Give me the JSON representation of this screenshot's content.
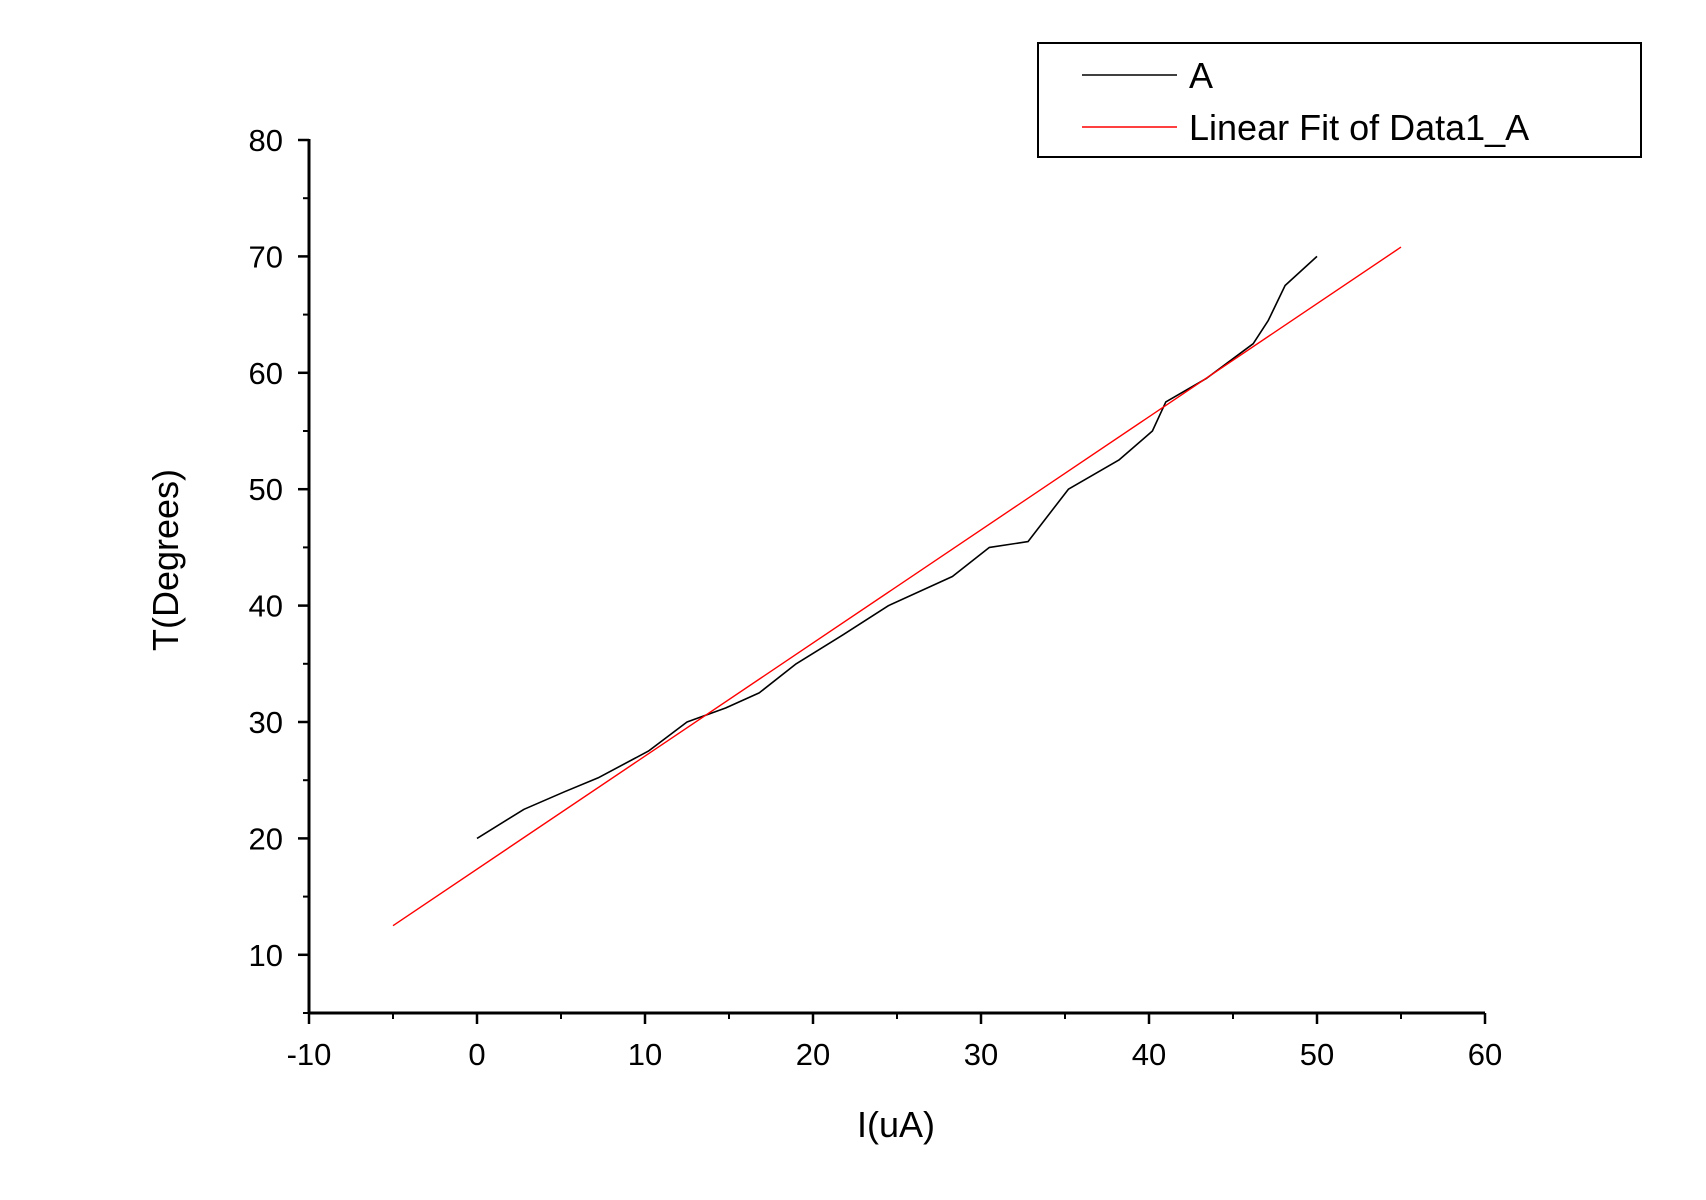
{
  "chart_data": {
    "type": "line",
    "title": "",
    "xlabel": "I(uA)",
    "ylabel": "T(Degrees)",
    "xlim": [
      -10,
      60
    ],
    "ylim": [
      5,
      80
    ],
    "x_major_ticks": [
      -10,
      0,
      10,
      20,
      30,
      40,
      50,
      60
    ],
    "x_tick_labels": [
      "-10",
      "0",
      "10",
      "20",
      "30",
      "40",
      "50",
      "60"
    ],
    "y_major_ticks": [
      10,
      20,
      30,
      40,
      50,
      60,
      70,
      80
    ],
    "y_tick_labels": [
      "10",
      "20",
      "30",
      "40",
      "50",
      "60",
      "70",
      "80"
    ],
    "grid": false,
    "legend_position": "top-right",
    "series": [
      {
        "name": "A",
        "color": "#000000",
        "x": [
          0,
          2.8,
          5.2,
          7.2,
          10.2,
          12.5,
          14.8,
          16.8,
          19,
          21.8,
          24.5,
          28.3,
          30.5,
          32.8,
          35.2,
          38.2,
          40.2,
          41,
          43.4,
          46.2,
          47.1,
          48.1,
          50
        ],
        "y": [
          20,
          22.5,
          24,
          25.2,
          27.5,
          30,
          31.2,
          32.5,
          35,
          37.5,
          40,
          42.5,
          45,
          45.5,
          50,
          52.5,
          55,
          57.5,
          59.5,
          62.5,
          64.5,
          67.5,
          70
        ]
      },
      {
        "name": "Linear Fit of Data1_A",
        "color": "#ff0000",
        "x": [
          -5,
          55
        ],
        "y": [
          12.5,
          70.8
        ]
      }
    ]
  }
}
